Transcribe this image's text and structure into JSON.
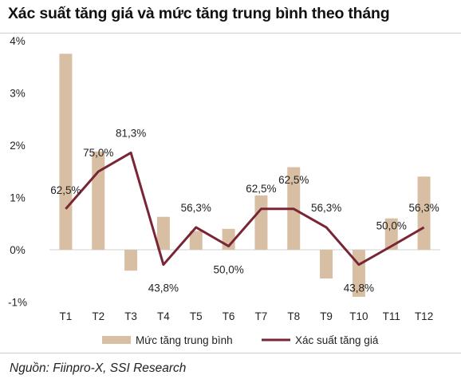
{
  "title": "Xác suất tăng giá và mức tăng trung bình theo tháng",
  "source": "Nguồn: Fiinpro-X, SSI Research",
  "chart_data": {
    "type": "bar+line",
    "categories": [
      "T1",
      "T2",
      "T3",
      "T4",
      "T5",
      "T6",
      "T7",
      "T8",
      "T9",
      "T10",
      "T11",
      "T12"
    ],
    "series": [
      {
        "name": "Mức tăng trung bình",
        "type": "bar",
        "axis": "left",
        "color": "#d8bfa3",
        "values": [
          3.75,
          1.88,
          -0.4,
          0.63,
          0.36,
          0.4,
          1.04,
          1.58,
          -0.55,
          -0.9,
          0.6,
          1.4
        ]
      },
      {
        "name": "Xác suất tăng giá",
        "type": "line",
        "axis": "right-hidden",
        "color": "#7a2535",
        "values": [
          62.5,
          75.0,
          81.3,
          43.8,
          56.3,
          50.0,
          62.5,
          62.5,
          56.3,
          43.8,
          50.0,
          56.3
        ],
        "labels": [
          "62,5%",
          "75,0%",
          "81,3%",
          "43,8%",
          "56,3%",
          "50,0%",
          "62,5%",
          "62,5%",
          "56,3%",
          "43,8%",
          "50,0%",
          "56,3%"
        ]
      }
    ],
    "y_ticks": [
      "4%",
      "3%",
      "2%",
      "1%",
      "0%",
      "-1%"
    ],
    "y_tick_values": [
      4,
      3,
      2,
      1,
      0,
      -1
    ],
    "ylim": [
      -1,
      4
    ],
    "legend": "bottom-center",
    "grid": false
  }
}
